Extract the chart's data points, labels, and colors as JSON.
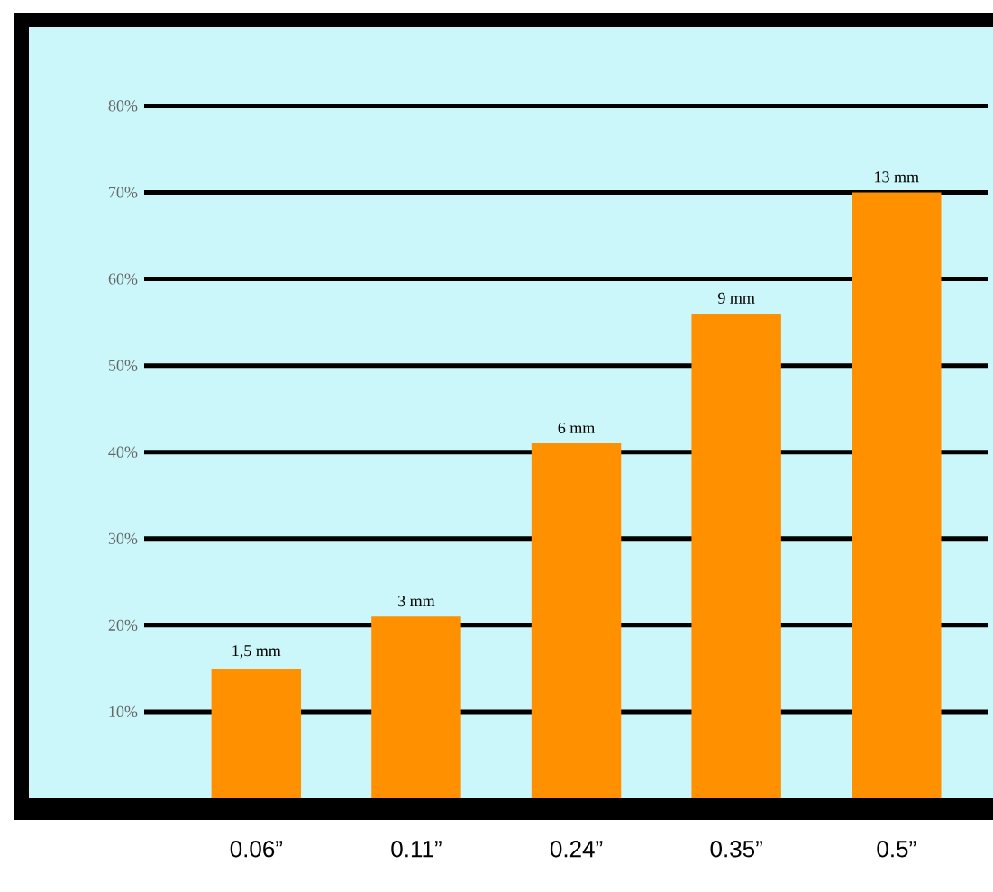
{
  "chart_data": {
    "type": "bar",
    "categories": [
      "0.06”",
      "0.11”",
      "0.24”",
      "0.35”",
      "0.5”"
    ],
    "values": [
      15,
      21,
      41,
      56,
      70
    ],
    "annotations": [
      {
        "text": "1,5 mm",
        "x": "0.06”",
        "y": 15
      },
      {
        "text": "3 mm",
        "x": "0.11”",
        "y": 21
      },
      {
        "text": "6 mm",
        "x": "0.24”",
        "y": 41
      },
      {
        "text": "9 mm",
        "x": "0.35”",
        "y": 56
      },
      {
        "text": "13 mm",
        "x": "0.5”",
        "y": 70
      }
    ],
    "color": "#ff9000",
    "ylim": [
      0,
      80
    ],
    "yticks": [
      {
        "value": 10,
        "label": "10%"
      },
      {
        "value": 20,
        "label": "20%"
      },
      {
        "value": 30,
        "label": "30%"
      },
      {
        "value": 40,
        "label": "40%"
      },
      {
        "value": 50,
        "label": "50%"
      },
      {
        "value": 60,
        "label": "60%"
      },
      {
        "value": 70,
        "label": "70%"
      },
      {
        "value": 80,
        "label": "80%"
      }
    ],
    "grid": "y"
  }
}
